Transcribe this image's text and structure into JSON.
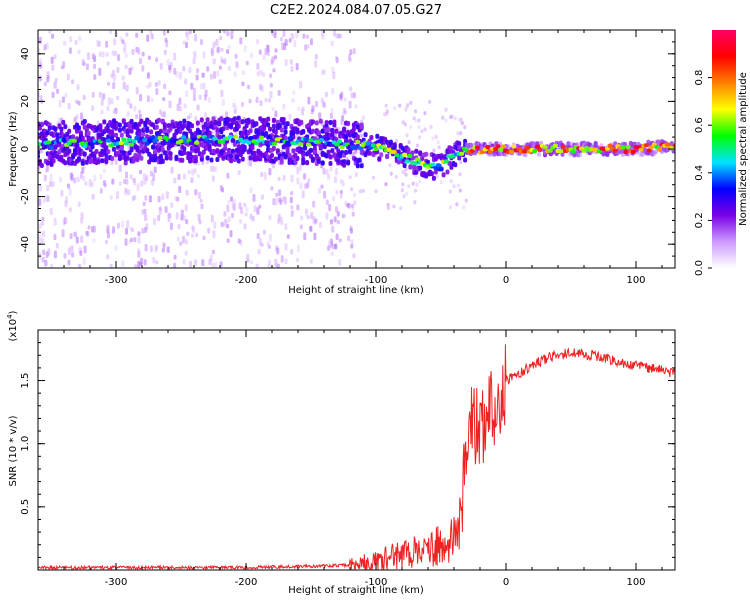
{
  "page_title": "C2E2.2024.084.07.05.G27",
  "chart_data": [
    {
      "type": "heatmap",
      "xlabel": "Height of straight line (km)",
      "ylabel": "Frequency (Hz)",
      "xlim": [
        -360,
        130
      ],
      "ylim": [
        -50,
        50
      ],
      "x_ticks": [
        -300,
        -200,
        -100,
        0,
        100
      ],
      "x_tick_labels": [
        "-300",
        "-200",
        "-100",
        "0",
        "100"
      ],
      "y_ticks": [
        -40,
        -20,
        0,
        20,
        40
      ],
      "y_tick_labels": [
        "-40",
        "-20",
        "0",
        "20",
        "40"
      ],
      "grid": false,
      "ridge": {
        "x": [
          -360,
          -300,
          -200,
          -150,
          -120,
          -100,
          -80,
          -60,
          -50,
          -40,
          -30,
          -20,
          0,
          50,
          100,
          130
        ],
        "freq": [
          2,
          3,
          4,
          3,
          2,
          1,
          -3,
          -7,
          -8,
          -2,
          0,
          0,
          0,
          0,
          0,
          1
        ]
      },
      "colorbar": {
        "label": "Normalized spectral amplitude",
        "range": [
          0,
          1
        ],
        "ticks": [
          0,
          0.2,
          0.4,
          0.6,
          0.8
        ],
        "tick_labels": [
          "0.0",
          "0.2",
          "0.4",
          "0.6",
          "0.8"
        ],
        "colors": [
          "#ffffff",
          "#cc99ff",
          "#7a00e6",
          "#0000ff",
          "#00e5ff",
          "#00ff00",
          "#ffff00",
          "#ff8000",
          "#ff0000",
          "#ff0066"
        ]
      }
    },
    {
      "type": "line",
      "xlabel": "Height of straight line (km)",
      "ylabel": "SNR (10 * v/v)",
      "multiplier_label": "(x10",
      "multiplier_exp": "4",
      "multiplier_close": ")",
      "xlim": [
        -360,
        130
      ],
      "ylim": [
        0,
        1.9
      ],
      "x_ticks": [
        -300,
        -200,
        -100,
        0,
        100
      ],
      "x_tick_labels": [
        "-300",
        "-200",
        "-100",
        "0",
        "100"
      ],
      "y_ticks": [
        0.5,
        1.0,
        1.5
      ],
      "y_tick_labels": [
        "0.5",
        "1.0",
        "1.5"
      ],
      "color": "#ee2222",
      "series": [
        {
          "x": [
            -360,
            -300,
            -250,
            -200,
            -150,
            -120,
            -100,
            -90,
            -80,
            -70,
            -60,
            -50,
            -45,
            -40,
            -35,
            -30,
            -25,
            -20,
            -15,
            -10,
            -5,
            0,
            10,
            20,
            30,
            40,
            50,
            60,
            70,
            80,
            90,
            100,
            110,
            120,
            130
          ],
          "y": [
            0.02,
            0.02,
            0.02,
            0.02,
            0.03,
            0.04,
            0.06,
            0.1,
            0.12,
            0.14,
            0.16,
            0.2,
            0.15,
            0.3,
            0.5,
            1.0,
            1.2,
            1.05,
            1.2,
            1.3,
            1.4,
            1.5,
            1.55,
            1.62,
            1.67,
            1.7,
            1.72,
            1.71,
            1.69,
            1.67,
            1.63,
            1.62,
            1.6,
            1.58,
            1.56
          ]
        }
      ]
    }
  ]
}
